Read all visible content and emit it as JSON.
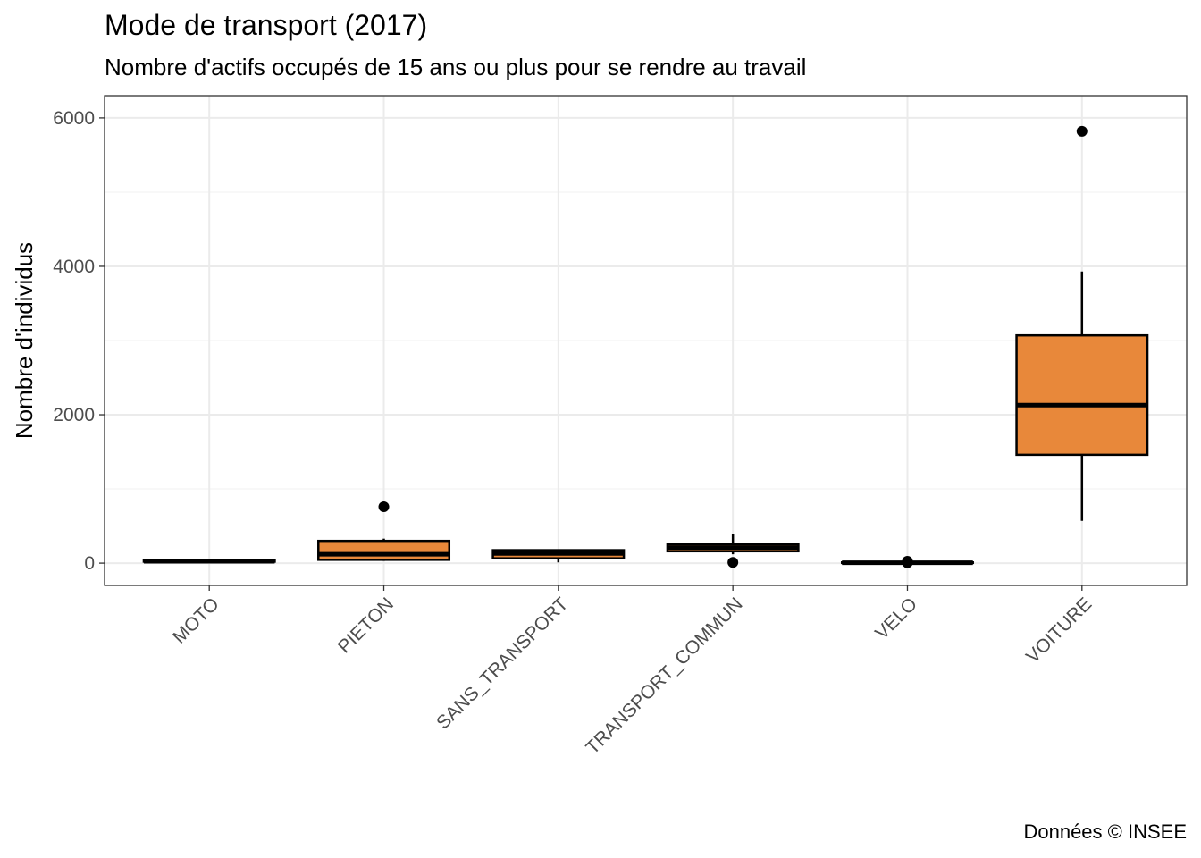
{
  "chart_data": {
    "type": "boxplot",
    "title": "Mode de transport (2017)",
    "subtitle": "Nombre d'actifs occupés de 15 ans ou plus pour se rendre au travail",
    "caption": "Données © INSEE",
    "xlabel": "",
    "ylabel": "Nombre d'individus",
    "ylim": [
      -300,
      6300
    ],
    "yticks": [
      0,
      2000,
      4000,
      6000
    ],
    "grid": true,
    "fill_color": "#E8883A",
    "categories": [
      "MOTO",
      "PIETON",
      "SANS_TRANSPORT",
      "TRANSPORT_COMMUN",
      "VELO",
      "VOITURE"
    ],
    "boxes": [
      {
        "category": "MOTO",
        "whisker_low": 10,
        "q1": 20,
        "median": 25,
        "q3": 35,
        "whisker_high": 45,
        "outliers": []
      },
      {
        "category": "PIETON",
        "whisker_low": 30,
        "q1": 45,
        "median": 120,
        "q3": 300,
        "whisker_high": 330,
        "outliers": [
          760
        ]
      },
      {
        "category": "SANS_TRANSPORT",
        "whisker_low": 10,
        "q1": 65,
        "median": 130,
        "q3": 175,
        "whisker_high": 185,
        "outliers": []
      },
      {
        "category": "TRANSPORT_COMMUN",
        "whisker_low": 120,
        "q1": 160,
        "median": 210,
        "q3": 255,
        "whisker_high": 390,
        "outliers": [
          10
        ]
      },
      {
        "category": "VELO",
        "whisker_low": 0,
        "q1": 3,
        "median": 6,
        "q3": 10,
        "whisker_high": 15,
        "outliers": [
          25,
          5
        ]
      },
      {
        "category": "VOITURE",
        "whisker_low": 570,
        "q1": 1460,
        "median": 2130,
        "q3": 3070,
        "whisker_high": 3930,
        "outliers": [
          5820
        ]
      }
    ]
  }
}
